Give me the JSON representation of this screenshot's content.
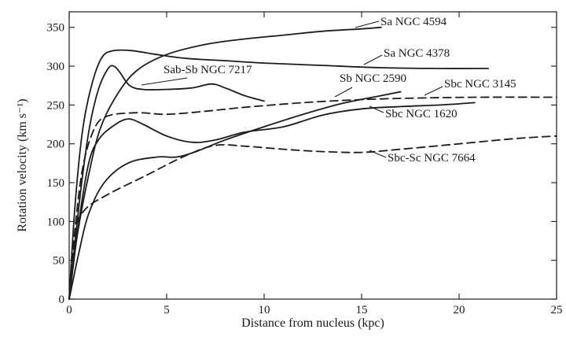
{
  "chart_data": {
    "type": "line",
    "xlabel": "Distance from nucleus (kpc)",
    "ylabel": "Rotation velocity (km s⁻¹)",
    "xlim": [
      0,
      25
    ],
    "ylim": [
      0,
      370
    ],
    "xticks": [
      0,
      5,
      10,
      15,
      20,
      25
    ],
    "yticks": [
      0,
      50,
      100,
      150,
      200,
      250,
      300,
      350
    ],
    "grid": false,
    "legend": "labels placed directly beside curves",
    "series": [
      {
        "name": "Sa NGC 4594",
        "style": "solid",
        "points": [
          [
            0,
            0
          ],
          [
            0.4,
            80
          ],
          [
            1,
            160
          ],
          [
            1.6,
            220
          ],
          [
            2.5,
            265
          ],
          [
            3.5,
            295
          ],
          [
            5,
            315
          ],
          [
            7,
            328
          ],
          [
            9,
            335
          ],
          [
            11,
            340
          ],
          [
            13,
            345
          ],
          [
            15,
            348
          ],
          [
            16,
            350
          ]
        ]
      },
      {
        "name": "Sa NGC 4378",
        "style": "solid",
        "points": [
          [
            0,
            0
          ],
          [
            0.3,
            120
          ],
          [
            0.7,
            220
          ],
          [
            1.2,
            280
          ],
          [
            1.7,
            312
          ],
          [
            2.3,
            320
          ],
          [
            3.2,
            320
          ],
          [
            4.5,
            315
          ],
          [
            6,
            310
          ],
          [
            8,
            307
          ],
          [
            10,
            304
          ],
          [
            13,
            301
          ],
          [
            16,
            298
          ],
          [
            19,
            297
          ],
          [
            21.5,
            297
          ]
        ]
      },
      {
        "name": "Sab-Sb NGC 7217",
        "style": "solid",
        "points": [
          [
            0,
            0
          ],
          [
            0.5,
            120
          ],
          [
            1,
            215
          ],
          [
            1.5,
            270
          ],
          [
            2,
            297
          ],
          [
            2.3,
            300
          ],
          [
            2.6,
            292
          ],
          [
            3.1,
            275
          ],
          [
            3.8,
            270
          ],
          [
            5,
            270
          ],
          [
            6.3,
            272
          ],
          [
            7.3,
            277
          ],
          [
            8,
            272
          ],
          [
            9,
            262
          ],
          [
            10,
            255
          ]
        ]
      },
      {
        "name": "Sb NGC 2590",
        "style": "solid",
        "points": [
          [
            0,
            0
          ],
          [
            0.5,
            60
          ],
          [
            1,
            110
          ],
          [
            1.8,
            150
          ],
          [
            3,
            175
          ],
          [
            4.5,
            183
          ],
          [
            5.5,
            183
          ],
          [
            6.5,
            190
          ],
          [
            8,
            205
          ],
          [
            10,
            222
          ],
          [
            12,
            238
          ],
          [
            14,
            252
          ],
          [
            16,
            262
          ],
          [
            17,
            267
          ]
        ]
      },
      {
        "name": "Sbc NGC 3145",
        "style": "dashed",
        "points": [
          [
            0,
            0
          ],
          [
            0.3,
            90
          ],
          [
            0.7,
            170
          ],
          [
            1.3,
            220
          ],
          [
            2,
            236
          ],
          [
            3.5,
            240
          ],
          [
            5,
            238
          ],
          [
            7,
            242
          ],
          [
            9,
            247
          ],
          [
            12,
            253
          ],
          [
            15,
            257
          ],
          [
            18,
            259
          ],
          [
            21,
            260
          ],
          [
            25,
            260
          ]
        ]
      },
      {
        "name": "Sbc NGC 1620",
        "style": "solid",
        "points": [
          [
            0,
            0
          ],
          [
            0.5,
            100
          ],
          [
            1,
            175
          ],
          [
            1.5,
            205
          ],
          [
            2.2,
            222
          ],
          [
            3,
            232
          ],
          [
            3.8,
            225
          ],
          [
            5,
            210
          ],
          [
            6.3,
            202
          ],
          [
            7.5,
            205
          ],
          [
            9,
            215
          ],
          [
            11,
            222
          ],
          [
            13,
            237
          ],
          [
            15,
            245
          ],
          [
            17,
            248
          ],
          [
            19,
            250
          ],
          [
            20.8,
            253
          ]
        ]
      },
      {
        "name": "Sbc-Sc NGC 7664",
        "style": "dashed",
        "points": [
          [
            0,
            0
          ],
          [
            0.3,
            85
          ],
          [
            0.8,
            115
          ],
          [
            2,
            135
          ],
          [
            4,
            160
          ],
          [
            6,
            185
          ],
          [
            7.5,
            198
          ],
          [
            9,
            197
          ],
          [
            11,
            193
          ],
          [
            13,
            190
          ],
          [
            15,
            189
          ],
          [
            17,
            193
          ],
          [
            20,
            200
          ],
          [
            23,
            207
          ],
          [
            25,
            210
          ]
        ]
      }
    ]
  }
}
